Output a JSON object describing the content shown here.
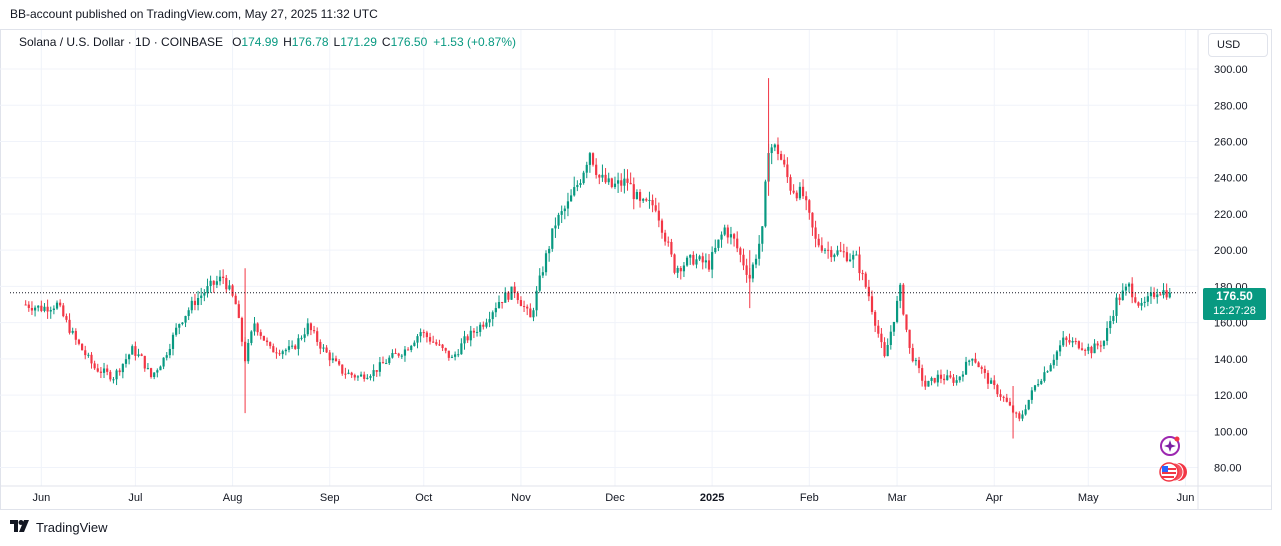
{
  "header": {
    "caption": "BB-account published on TradingView.com, May 27, 2025 11:32 UTC"
  },
  "legend": {
    "symbol": "Solana / U.S. Dollar · 1D · COINBASE",
    "o_label": "O",
    "o_value": "174.99",
    "h_label": "H",
    "h_value": "176.78",
    "l_label": "L",
    "l_value": "171.29",
    "c_label": "C",
    "c_value": "176.50",
    "change": "+1.53 (+0.87%)"
  },
  "currency_button": "USD",
  "price_tag": {
    "price": "176.50",
    "countdown": "12:27:28"
  },
  "footer": {
    "brand": "TradingView"
  },
  "colors": {
    "up": "#089981",
    "down": "#f23645",
    "grid": "#f0f3fa",
    "axis_text": "#131722"
  },
  "chart_data": {
    "type": "candlestick",
    "ylim": [
      72,
      305
    ],
    "y_ticks": [
      "80.00",
      "100.00",
      "120.00",
      "140.00",
      "160.00",
      "180.00",
      "200.00",
      "220.00",
      "240.00",
      "260.00",
      "280.00",
      "300.00"
    ],
    "x_ticks": [
      {
        "label": "Jun",
        "date": "2024-06-01"
      },
      {
        "label": "Jul",
        "date": "2024-07-01"
      },
      {
        "label": "Aug",
        "date": "2024-08-01"
      },
      {
        "label": "Sep",
        "date": "2024-09-01"
      },
      {
        "label": "Oct",
        "date": "2024-10-01"
      },
      {
        "label": "Nov",
        "date": "2024-11-01"
      },
      {
        "label": "Dec",
        "date": "2024-12-01"
      },
      {
        "label": "2025",
        "date": "2025-01-01",
        "bold": true
      },
      {
        "label": "Feb",
        "date": "2025-02-01"
      },
      {
        "label": "Mar",
        "date": "2025-03-01"
      },
      {
        "label": "Apr",
        "date": "2025-04-01"
      },
      {
        "label": "May",
        "date": "2025-05-01"
      },
      {
        "label": "Jun",
        "date": "2025-06-01"
      }
    ],
    "first_date": "2024-05-27",
    "last_price": 176.5,
    "series": [
      {
        "name": "SOL/USD",
        "close_anchors": [
          [
            "2024-05-27",
            170
          ],
          [
            "2024-06-01",
            168
          ],
          [
            "2024-06-06",
            170
          ],
          [
            "2024-06-12",
            150
          ],
          [
            "2024-06-18",
            135
          ],
          [
            "2024-06-24",
            130
          ],
          [
            "2024-06-30",
            145
          ],
          [
            "2024-07-03",
            140
          ],
          [
            "2024-07-06",
            130
          ],
          [
            "2024-07-10",
            140
          ],
          [
            "2024-07-15",
            160
          ],
          [
            "2024-07-20",
            172
          ],
          [
            "2024-07-25",
            180
          ],
          [
            "2024-07-29",
            185
          ],
          [
            "2024-08-02",
            170
          ],
          [
            "2024-08-05",
            140
          ],
          [
            "2024-08-08",
            160
          ],
          [
            "2024-08-13",
            145
          ],
          [
            "2024-08-20",
            145
          ],
          [
            "2024-08-25",
            158
          ],
          [
            "2024-08-30",
            145
          ],
          [
            "2024-09-05",
            133
          ],
          [
            "2024-09-10",
            130
          ],
          [
            "2024-09-15",
            133
          ],
          [
            "2024-09-20",
            140
          ],
          [
            "2024-09-25",
            145
          ],
          [
            "2024-09-30",
            155
          ],
          [
            "2024-10-05",
            148
          ],
          [
            "2024-10-10",
            140
          ],
          [
            "2024-10-14",
            150
          ],
          [
            "2024-10-20",
            160
          ],
          [
            "2024-10-25",
            172
          ],
          [
            "2024-10-30",
            178
          ],
          [
            "2024-11-04",
            162
          ],
          [
            "2024-11-08",
            190
          ],
          [
            "2024-11-12",
            215
          ],
          [
            "2024-11-16",
            225
          ],
          [
            "2024-11-20",
            240
          ],
          [
            "2024-11-23",
            255
          ],
          [
            "2024-11-26",
            240
          ],
          [
            "2024-11-30",
            235
          ],
          [
            "2024-12-05",
            238
          ],
          [
            "2024-12-09",
            225
          ],
          [
            "2024-12-14",
            225
          ],
          [
            "2024-12-20",
            190
          ],
          [
            "2024-12-26",
            195
          ],
          [
            "2024-12-31",
            192
          ],
          [
            "2025-01-05",
            212
          ],
          [
            "2025-01-08",
            205
          ],
          [
            "2025-01-13",
            185
          ],
          [
            "2025-01-17",
            210
          ],
          [
            "2025-01-19",
            258
          ],
          [
            "2025-01-22",
            255
          ],
          [
            "2025-01-26",
            235
          ],
          [
            "2025-01-30",
            230
          ],
          [
            "2025-02-03",
            205
          ],
          [
            "2025-02-07",
            200
          ],
          [
            "2025-02-12",
            198
          ],
          [
            "2025-02-16",
            195
          ],
          [
            "2025-02-20",
            175
          ],
          [
            "2025-02-25",
            140
          ],
          [
            "2025-03-02",
            178
          ],
          [
            "2025-03-05",
            145
          ],
          [
            "2025-03-10",
            125
          ],
          [
            "2025-03-14",
            130
          ],
          [
            "2025-03-20",
            128
          ],
          [
            "2025-03-25",
            142
          ],
          [
            "2025-03-30",
            128
          ],
          [
            "2025-04-04",
            118
          ],
          [
            "2025-04-09",
            106
          ],
          [
            "2025-04-14",
            125
          ],
          [
            "2025-04-18",
            135
          ],
          [
            "2025-04-23",
            150
          ],
          [
            "2025-04-28",
            148
          ],
          [
            "2025-05-02",
            145
          ],
          [
            "2025-05-06",
            150
          ],
          [
            "2025-05-10",
            172
          ],
          [
            "2025-05-14",
            180
          ],
          [
            "2025-05-18",
            168
          ],
          [
            "2025-05-23",
            178
          ],
          [
            "2025-05-27",
            176.5
          ]
        ]
      }
    ]
  }
}
